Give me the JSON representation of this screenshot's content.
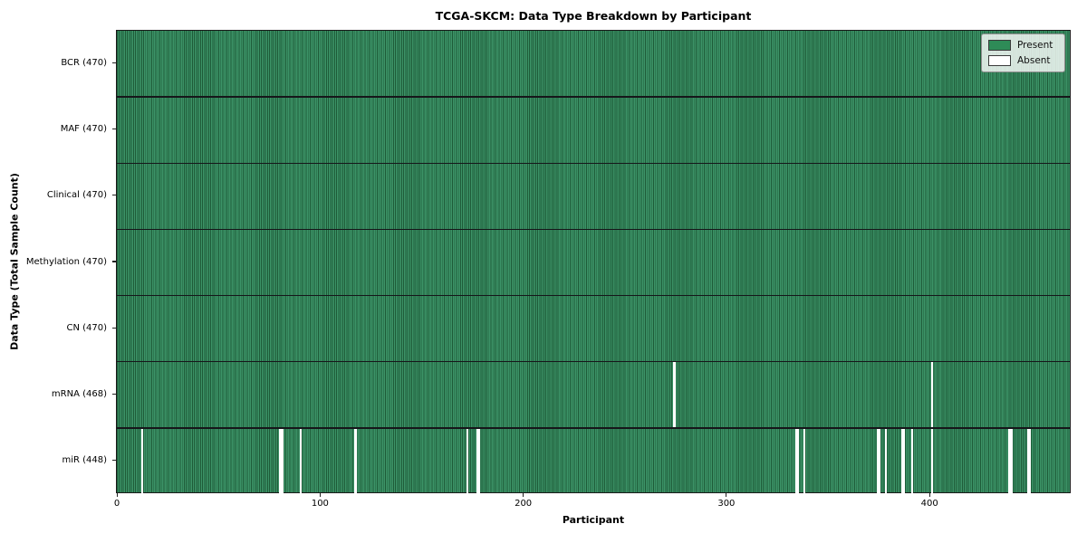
{
  "title": "TCGA-SKCM: Data Type Breakdown by Participant",
  "legend": {
    "present_label": "Present",
    "absent_label": "Absent"
  },
  "colors": {
    "present_fill": "#2e8b57",
    "present_stripe_light": "#3c9367",
    "present_stripe_dark": "#1e5b38",
    "absent_fill": "#ffffff"
  },
  "chart_data": {
    "type": "heatmap",
    "title": "TCGA-SKCM: Data Type Breakdown by Participant",
    "xlabel": "Participant",
    "ylabel": "Data Type (Total Sample Count)",
    "x_ticks": [
      0,
      100,
      200,
      300,
      400
    ],
    "n_participants": 470,
    "grid": false,
    "legend_position": "upper right",
    "legend_entries": [
      {
        "label": "Present",
        "color": "#2e8b57"
      },
      {
        "label": "Absent",
        "color": "#ffffff"
      }
    ],
    "rows": [
      {
        "name": "BCR",
        "label": "BCR (470)",
        "present_count": 470,
        "absent_participants": []
      },
      {
        "name": "MAF",
        "label": "MAF (470)",
        "present_count": 470,
        "absent_participants": []
      },
      {
        "name": "Clinical",
        "label": "Clinical (470)",
        "present_count": 470,
        "absent_participants": []
      },
      {
        "name": "Methylation",
        "label": "Methylation (470)",
        "present_count": 470,
        "absent_participants": []
      },
      {
        "name": "CN",
        "label": "CN (470)",
        "present_count": 470,
        "absent_participants": []
      },
      {
        "name": "mRNA",
        "label": "mRNA (468)",
        "present_count": 468,
        "absent_participants": [
          274,
          401
        ]
      },
      {
        "name": "miR",
        "label": "miR (448)",
        "present_count": 448,
        "absent_participants": [
          12,
          80,
          81,
          90,
          117,
          172,
          177,
          178,
          334,
          335,
          338,
          374,
          375,
          378,
          386,
          387,
          391,
          401,
          439,
          440,
          448,
          449
        ]
      }
    ]
  }
}
